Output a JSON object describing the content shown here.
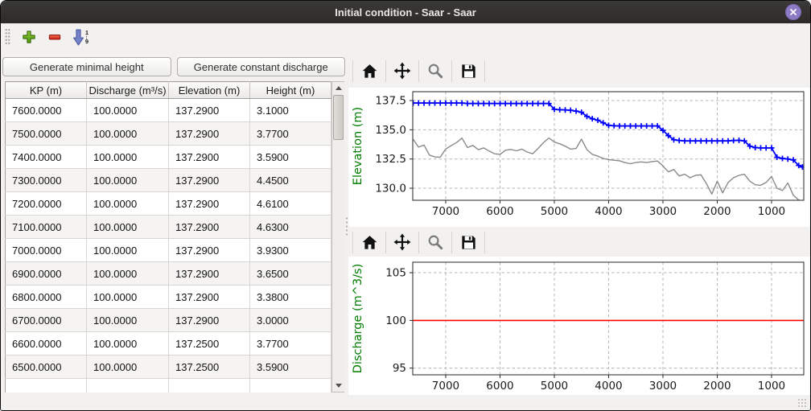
{
  "window": {
    "title": "Initial condition - Saar - Saar"
  },
  "main_toolbar": {
    "icons": [
      {
        "name": "add-icon"
      },
      {
        "name": "remove-icon"
      },
      {
        "name": "sort-ascending-icon",
        "top_label": "1",
        "bottom_label": "9"
      }
    ]
  },
  "left_pane": {
    "buttons": [
      {
        "label": "Generate minimal height"
      },
      {
        "label": "Generate constant discharge"
      }
    ],
    "table": {
      "columns": [
        "KP (m)",
        "Discharge (m³/s)",
        "Elevation (m)",
        "Height (m)"
      ],
      "rows": [
        [
          "7600.0000",
          "100.0000",
          "137.2900",
          "3.1000"
        ],
        [
          "7500.0000",
          "100.0000",
          "137.2900",
          "3.7700"
        ],
        [
          "7400.0000",
          "100.0000",
          "137.2900",
          "3.5900"
        ],
        [
          "7300.0000",
          "100.0000",
          "137.2900",
          "4.4500"
        ],
        [
          "7200.0000",
          "100.0000",
          "137.2900",
          "4.6100"
        ],
        [
          "7100.0000",
          "100.0000",
          "137.2900",
          "4.6300"
        ],
        [
          "7000.0000",
          "100.0000",
          "137.2900",
          "3.9300"
        ],
        [
          "6900.0000",
          "100.0000",
          "137.2900",
          "3.6500"
        ],
        [
          "6800.0000",
          "100.0000",
          "137.2900",
          "3.3800"
        ],
        [
          "6700.0000",
          "100.0000",
          "137.2900",
          "3.0000"
        ],
        [
          "6600.0000",
          "100.0000",
          "137.2500",
          "3.7700"
        ],
        [
          "6500.0000",
          "100.0000",
          "137.2500",
          "3.5900"
        ]
      ]
    }
  },
  "plot_toolbar": {
    "icons": [
      "home-icon",
      "pan-icon",
      "zoom-icon",
      "save-icon"
    ]
  },
  "chart_data": [
    {
      "type": "line",
      "ylabel": "Elevation (m)",
      "x_inverted": true,
      "xlim": [
        7607,
        407
      ],
      "ylim": [
        128.97,
        138.26
      ],
      "xticks": [
        7000,
        6000,
        5000,
        4000,
        3000,
        2000,
        1000
      ],
      "yticks": [
        137.5,
        135.0,
        132.5,
        130.0
      ],
      "ytick_labels": [
        "137.5",
        "135.0",
        "132.5",
        "130.0"
      ],
      "grid": true,
      "series": [
        {
          "name": "water-surface-elevation",
          "color": "#0000ff",
          "marker": "plus",
          "width": 1.8,
          "x": [
            7600,
            7500,
            7400,
            7300,
            7200,
            7100,
            7000,
            6900,
            6800,
            6700,
            6600,
            6500,
            6400,
            6300,
            6200,
            6100,
            6000,
            5900,
            5800,
            5700,
            5600,
            5500,
            5400,
            5300,
            5200,
            5100,
            5000,
            4900,
            4800,
            4700,
            4600,
            4500,
            4400,
            4300,
            4200,
            4100,
            4000,
            3900,
            3800,
            3700,
            3600,
            3500,
            3400,
            3300,
            3200,
            3100,
            3000,
            2900,
            2800,
            2700,
            2600,
            2500,
            2400,
            2300,
            2200,
            2100,
            2000,
            1900,
            1800,
            1700,
            1600,
            1500,
            1400,
            1300,
            1200,
            1100,
            1000,
            900,
            800,
            700,
            600,
            500,
            430
          ],
          "y": [
            137.29,
            137.29,
            137.29,
            137.29,
            137.29,
            137.29,
            137.29,
            137.29,
            137.29,
            137.29,
            137.25,
            137.25,
            137.25,
            137.25,
            137.25,
            137.25,
            137.25,
            137.25,
            137.25,
            137.25,
            137.25,
            137.25,
            137.25,
            137.25,
            137.25,
            137.25,
            136.75,
            136.72,
            136.7,
            136.67,
            136.6,
            136.5,
            136.15,
            135.95,
            135.82,
            135.6,
            135.38,
            135.35,
            135.33,
            135.33,
            135.33,
            135.33,
            135.33,
            135.33,
            135.33,
            135.33,
            134.95,
            134.5,
            134.15,
            134.08,
            134.05,
            134.05,
            134.05,
            134.05,
            134.05,
            134.05,
            134.05,
            134.05,
            134.05,
            134.08,
            134.1,
            134.05,
            133.6,
            133.48,
            133.45,
            133.45,
            133.45,
            132.65,
            132.55,
            132.5,
            132.42,
            131.95,
            131.82
          ]
        },
        {
          "name": "bed-elevation",
          "color": "#8a8a8a",
          "marker": "none",
          "width": 1.4,
          "x": [
            7600,
            7500,
            7400,
            7300,
            7200,
            7100,
            7000,
            6900,
            6800,
            6700,
            6600,
            6500,
            6400,
            6300,
            6200,
            6100,
            6000,
            5900,
            5800,
            5700,
            5600,
            5500,
            5400,
            5300,
            5200,
            5100,
            5000,
            4900,
            4800,
            4700,
            4600,
            4500,
            4400,
            4300,
            4200,
            4100,
            4000,
            3900,
            3800,
            3700,
            3600,
            3500,
            3400,
            3300,
            3200,
            3100,
            3000,
            2900,
            2800,
            2700,
            2600,
            2500,
            2400,
            2300,
            2200,
            2100,
            2000,
            1900,
            1800,
            1700,
            1600,
            1500,
            1400,
            1300,
            1200,
            1100,
            1000,
            900,
            800,
            700,
            600,
            500,
            430
          ],
          "y": [
            134.19,
            133.52,
            133.7,
            132.84,
            132.68,
            132.66,
            133.36,
            133.64,
            133.91,
            134.29,
            133.48,
            133.66,
            133.3,
            133.45,
            133.18,
            132.95,
            132.9,
            133.25,
            133.32,
            133.2,
            133.35,
            133.1,
            132.95,
            133.4,
            133.9,
            134.3,
            133.95,
            133.8,
            133.6,
            133.35,
            133.4,
            134.2,
            133.3,
            132.9,
            132.75,
            132.55,
            132.45,
            132.4,
            132.35,
            132.2,
            132.1,
            132.2,
            132.25,
            132.2,
            132.28,
            132.33,
            131.9,
            131.4,
            131.6,
            131.05,
            131.2,
            130.9,
            131.1,
            131.15,
            130.4,
            129.5,
            130.6,
            129.6,
            130.5,
            130.9,
            131.1,
            131.2,
            130.6,
            130.3,
            130.25,
            130.5,
            131.0,
            130.0,
            129.8,
            130.45,
            129.4,
            129.0,
            128.88
          ]
        }
      ]
    },
    {
      "type": "line",
      "ylabel": "Discharge (m^3/s)",
      "x_inverted": true,
      "xlim": [
        7607,
        407
      ],
      "ylim": [
        94.3,
        106.1
      ],
      "xticks": [
        7000,
        6000,
        5000,
        4000,
        3000,
        2000,
        1000
      ],
      "yticks": [
        105,
        100,
        95
      ],
      "ytick_labels": [
        "105",
        "100",
        "95"
      ],
      "grid": true,
      "series": [
        {
          "name": "constant-discharge",
          "color": "#ff0000",
          "marker": "none",
          "width": 1.6,
          "x": [
            7607,
            407
          ],
          "y": [
            100,
            100
          ]
        }
      ]
    }
  ],
  "colors": {
    "titlebar_bg": "#2e2d2b",
    "close_button": "#8d7bc6",
    "panel_bg": "#f2f1ef",
    "axis_label_green": "#007d00",
    "water_line": "#0000ff",
    "bed_line": "#8a8a8a",
    "discharge_line": "#ff0000",
    "grid_line": "#b4b4b4"
  }
}
